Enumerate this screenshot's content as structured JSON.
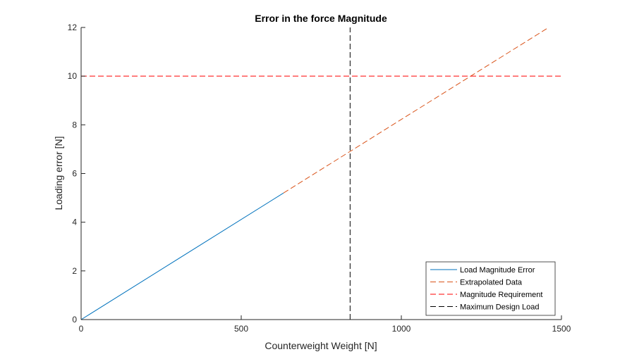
{
  "chart_data": {
    "type": "line",
    "title": "Error in the force Magnitude",
    "xlabel": "Counterweight Weight [N]",
    "ylabel": "Loading error [N]",
    "xlim": [
      0,
      1500
    ],
    "ylim": [
      0,
      12
    ],
    "xticks": [
      0,
      500,
      1000,
      1500
    ],
    "yticks": [
      0,
      2,
      4,
      6,
      8,
      10,
      12
    ],
    "grid": false,
    "legend_position": "bottom-right",
    "series": [
      {
        "name": "Load Magnitude Error",
        "style": "solid",
        "color": "#0072bd",
        "x": [
          0,
          632
        ],
        "y": [
          0,
          5.2
        ]
      },
      {
        "name": "Extrapolated Data",
        "style": "dashed",
        "color": "#d95319",
        "x": [
          632,
          1460
        ],
        "y": [
          5.2,
          12.0
        ]
      },
      {
        "name": "Magnitude Requirement",
        "style": "dashed",
        "color": "#ff0000",
        "x": [
          0,
          1500
        ],
        "y": [
          10,
          10
        ]
      },
      {
        "name": "Maximum Design Load",
        "style": "dashed",
        "color": "#000000",
        "x": [
          840,
          840
        ],
        "y": [
          0,
          12
        ]
      }
    ]
  }
}
